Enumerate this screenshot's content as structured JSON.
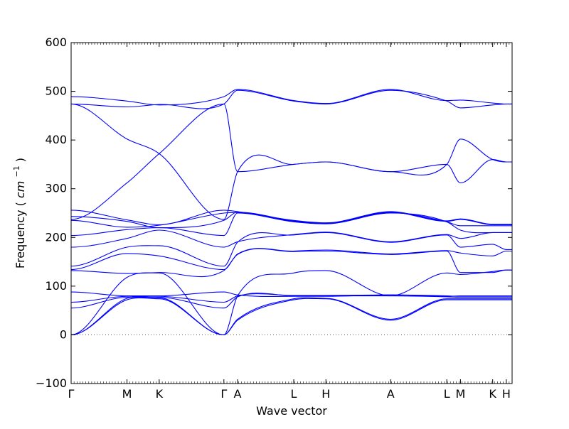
{
  "chart_data": {
    "type": "line",
    "title": "",
    "xlabel": "Wave vector",
    "ylabel": "Frequency",
    "ylabel_unit_sup": "−1",
    "ylabel_unit_base": "cm",
    "ylim": [
      -100,
      600
    ],
    "yticks": [
      -100,
      0,
      100,
      200,
      300,
      400,
      500,
      600
    ],
    "xlim": [
      0,
      14.52
    ],
    "high_symmetry_points": [
      {
        "label": "Γ",
        "x": 0
      },
      {
        "label": "M",
        "x": 1.84
      },
      {
        "label": "K",
        "x": 2.9
      },
      {
        "label": "Γ",
        "x": 5.03
      },
      {
        "label": "A",
        "x": 5.48
      },
      {
        "label": "L",
        "x": 7.33
      },
      {
        "label": "H",
        "x": 8.39
      },
      {
        "label": "A",
        "x": 10.52
      },
      {
        "label": "L",
        "x": 12.37
      },
      {
        "label": "M",
        "x": 12.82
      },
      {
        "label": "K",
        "x": 13.88
      },
      {
        "label": "H",
        "x": 14.33
      }
    ],
    "zero_line": 0,
    "line_color": "#0000ff",
    "zero_line_color": "#555555",
    "series": [
      {
        "x": [
          0,
          1.84,
          2.9,
          5.03,
          5.48,
          7.33,
          8.39,
          10.52,
          12.37,
          12.82,
          13.88,
          14.33,
          14.52
        ],
        "values": [
          0,
          72,
          74,
          0,
          30,
          72,
          74,
          30,
          72,
          72,
          72,
          72,
          72
        ]
      },
      {
        "x": [
          0,
          1.84,
          2.9,
          5.03,
          5.48,
          7.33,
          8.39,
          10.52,
          12.37,
          12.82,
          13.88,
          14.33,
          14.52
        ],
        "values": [
          0,
          75,
          76,
          0,
          32,
          74,
          75,
          32,
          74,
          74,
          74,
          74,
          74
        ]
      },
      {
        "x": [
          0,
          1.84,
          2.9,
          5.03,
          5.48,
          7.33,
          8.39,
          10.52,
          12.37,
          12.82,
          13.88,
          14.33,
          14.52
        ],
        "values": [
          0,
          118,
          127,
          0,
          80,
          127,
          132,
          80,
          127,
          124,
          130,
          133,
          133
        ]
      },
      {
        "x": [
          0,
          1.84,
          2.9,
          5.03,
          5.48,
          7.33,
          8.39,
          10.52,
          12.37,
          12.82,
          13.88,
          14.33,
          14.52
        ],
        "values": [
          55,
          77,
          77,
          55,
          78,
          80,
          80,
          80,
          78,
          77,
          77,
          77,
          77
        ]
      },
      {
        "x": [
          0,
          1.84,
          2.9,
          5.03,
          5.48,
          7.33,
          8.39,
          10.52,
          12.37,
          12.82,
          13.88,
          14.33,
          14.52
        ],
        "values": [
          67,
          79,
          79,
          67,
          80,
          81,
          81,
          82,
          80,
          79,
          79,
          79,
          79
        ]
      },
      {
        "x": [
          0,
          1.84,
          2.9,
          5.03,
          5.48,
          7.33,
          8.39,
          10.52,
          12.37,
          12.82,
          13.88,
          14.33,
          14.52
        ],
        "values": [
          88,
          80,
          80,
          88,
          82,
          79,
          79,
          82,
          79,
          80,
          80,
          80,
          80
        ]
      },
      {
        "x": [
          0,
          1.84,
          2.9,
          5.03,
          5.48,
          7.33,
          8.39,
          10.52,
          12.37,
          12.82,
          13.88,
          14.33,
          14.52
        ],
        "values": [
          132,
          126,
          128,
          132,
          165,
          171,
          172,
          165,
          172,
          128,
          128,
          133,
          133
        ]
      },
      {
        "x": [
          0,
          1.84,
          2.9,
          5.03,
          5.48,
          7.33,
          8.39,
          10.52,
          12.37,
          12.82,
          13.88,
          14.33,
          14.52
        ],
        "values": [
          134,
          167,
          162,
          134,
          166,
          172,
          174,
          166,
          173,
          168,
          162,
          172,
          172
        ]
      },
      {
        "x": [
          0,
          1.84,
          2.9,
          5.03,
          5.48,
          7.33,
          8.39,
          10.52,
          12.37,
          12.82,
          13.88,
          14.33,
          14.52
        ],
        "values": [
          141,
          180,
          183,
          141,
          190,
          205,
          210,
          190,
          205,
          180,
          186,
          175,
          175
        ]
      },
      {
        "x": [
          0,
          1.84,
          2.9,
          5.03,
          5.48,
          7.33,
          8.39,
          10.52,
          12.37,
          12.82,
          13.88,
          14.33,
          14.52
        ],
        "values": [
          180,
          198,
          215,
          180,
          191,
          206,
          211,
          191,
          206,
          198,
          210,
          210,
          210
        ]
      },
      {
        "x": [
          0,
          1.84,
          2.9,
          5.03,
          5.48,
          7.33,
          8.39,
          10.52,
          12.37,
          12.82,
          13.88,
          14.33,
          14.52
        ],
        "values": [
          204,
          216,
          220,
          204,
          250,
          232,
          228,
          250,
          232,
          215,
          210,
          210,
          210
        ]
      },
      {
        "x": [
          0,
          1.84,
          2.9,
          5.03,
          5.48,
          7.33,
          8.39,
          10.52,
          12.37,
          12.82,
          13.88,
          14.33,
          14.52
        ],
        "values": [
          235,
          221,
          225,
          250,
          251,
          233,
          228,
          251,
          232,
          224,
          224,
          224,
          224
        ]
      },
      {
        "x": [
          0,
          1.84,
          2.9,
          5.03,
          5.48,
          7.33,
          8.39,
          10.52,
          12.37,
          12.82,
          13.88,
          14.33,
          14.52
        ],
        "values": [
          243,
          233,
          220,
          235,
          252,
          234,
          229,
          252,
          233,
          237,
          226,
          226,
          226
        ]
      },
      {
        "x": [
          0,
          1.84,
          2.9,
          5.03,
          5.48,
          7.33,
          8.39,
          10.52,
          12.37,
          12.82,
          13.88,
          14.33,
          14.52
        ],
        "values": [
          256,
          236,
          226,
          256,
          253,
          235,
          230,
          253,
          234,
          238,
          227,
          227,
          227
        ]
      },
      {
        "x": [
          0,
          1.84,
          2.9,
          5.03,
          5.48,
          7.33,
          8.39,
          10.52,
          12.37,
          12.82,
          13.88,
          14.33,
          14.52
        ],
        "values": [
          237,
          312,
          372,
          474,
          335,
          350,
          355,
          335,
          350,
          312,
          360,
          355,
          355
        ]
      },
      {
        "x": [
          0,
          1.84,
          2.9,
          5.03,
          5.48,
          7.33,
          8.39,
          10.52,
          12.37,
          12.82,
          13.88,
          14.33,
          14.52
        ],
        "values": [
          474,
          402,
          372,
          237,
          335,
          350,
          355,
          335,
          350,
          402,
          360,
          355,
          355
        ]
      },
      {
        "x": [
          0,
          1.84,
          2.9,
          5.03,
          5.48,
          7.33,
          8.39,
          10.52,
          12.37,
          12.82,
          13.88,
          14.33,
          14.52
        ],
        "values": [
          474,
          468,
          473,
          474,
          502,
          480,
          474,
          502,
          480,
          466,
          472,
          474,
          474
        ]
      },
      {
        "x": [
          0,
          1.84,
          2.9,
          5.03,
          5.48,
          7.33,
          8.39,
          10.52,
          12.37,
          12.82,
          13.88,
          14.33,
          14.52
        ],
        "values": [
          489,
          480,
          472,
          489,
          504,
          481,
          475,
          504,
          481,
          482,
          476,
          474,
          474
        ]
      }
    ]
  }
}
